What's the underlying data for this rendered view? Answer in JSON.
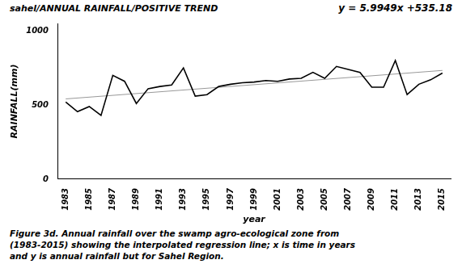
{
  "chart_data": {
    "type": "line",
    "title": "sahel/ANNUAL RAINFALL/POSITIVE TREND",
    "annotations": [
      "y = 5.9949x +535.18",
      "Figure 3d. Annual rainfall over the swamp agro-ecological zone from\n(1983-2015) showing the interpolated regression line; x is time in years\nand y is annual rainfall but for Sahel Region."
    ],
    "x_label": "year",
    "y_label": "RAINFALL(mm)",
    "x": [
      1983,
      1984,
      1985,
      1986,
      1987,
      1988,
      1989,
      1990,
      1991,
      1992,
      1993,
      1994,
      1995,
      1996,
      1997,
      1998,
      1999,
      2000,
      2001,
      2002,
      2003,
      2004,
      2005,
      2006,
      2007,
      2008,
      2009,
      2010,
      2011,
      2012,
      2013,
      2014,
      2015
    ],
    "series": [
      {
        "color": "#000000",
        "values": [
          520,
          455,
          490,
          430,
          700,
          660,
          510,
          610,
          625,
          635,
          750,
          560,
          570,
          625,
          640,
          650,
          655,
          665,
          660,
          675,
          680,
          720,
          680,
          760,
          740,
          720,
          620,
          620,
          800,
          570,
          640,
          670,
          715
        ]
      },
      {
        "color": "#999999",
        "x": [
          1983,
          2015
        ],
        "values": [
          541.1749,
          733.0117
        ]
      }
    ],
    "xlim": [
      1982.3,
      2015.7
    ],
    "xticks": [
      1983,
      1985,
      1987,
      1989,
      1991,
      1993,
      1995,
      1997,
      1999,
      2001,
      2003,
      2005,
      2007,
      2009,
      2011,
      2013,
      2015
    ],
    "ylim": [
      0,
      1050
    ],
    "yticks": [
      0,
      500,
      1000
    ],
    "grid": false
  }
}
